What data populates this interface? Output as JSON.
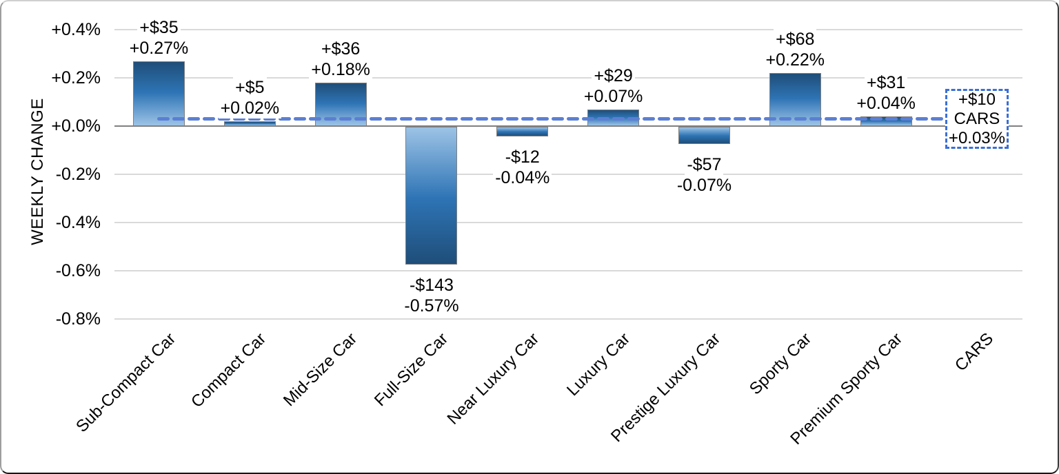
{
  "chart_data": {
    "type": "bar",
    "title": "",
    "ylabel": "WEEKLY CHANGE",
    "xlabel": "",
    "ylim": [
      -0.8,
      0.4
    ],
    "grid": "horizontal",
    "y_ticks": [
      {
        "label": "+0.4%",
        "value": 0.4
      },
      {
        "label": "+0.2%",
        "value": 0.2
      },
      {
        "label": "+0.0%",
        "value": 0.0
      },
      {
        "label": "-0.2%",
        "value": -0.2
      },
      {
        "label": "-0.4%",
        "value": -0.4
      },
      {
        "label": "-0.6%",
        "value": -0.6
      },
      {
        "label": "-0.8%",
        "value": -0.8
      }
    ],
    "bars": [
      {
        "category": "Sub-Compact Car",
        "usd_label": "+$35",
        "pct_label": "+0.27%",
        "value_pct": 0.27,
        "value_usd": 35
      },
      {
        "category": "Compact Car",
        "usd_label": "+$5",
        "pct_label": "+0.02%",
        "value_pct": 0.02,
        "value_usd": 5
      },
      {
        "category": "Mid-Size Car",
        "usd_label": "+$36",
        "pct_label": "+0.18%",
        "value_pct": 0.18,
        "value_usd": 36
      },
      {
        "category": "Full-Size Car",
        "usd_label": "-$143",
        "pct_label": "-0.57%",
        "value_pct": -0.57,
        "value_usd": -143
      },
      {
        "category": "Near Luxury Car",
        "usd_label": "-$12",
        "pct_label": "-0.04%",
        "value_pct": -0.04,
        "value_usd": -12
      },
      {
        "category": "Luxury Car",
        "usd_label": "+$29",
        "pct_label": "+0.07%",
        "value_pct": 0.07,
        "value_usd": 29
      },
      {
        "category": "Prestige Luxury Car",
        "usd_label": "-$57",
        "pct_label": "-0.07%",
        "value_pct": -0.07,
        "value_usd": -57
      },
      {
        "category": "Sporty Car",
        "usd_label": "+$68",
        "pct_label": "+0.22%",
        "value_pct": 0.22,
        "value_usd": 68
      },
      {
        "category": "Premium Sporty Car",
        "usd_label": "+$31",
        "pct_label": "+0.04%",
        "value_pct": 0.04,
        "value_usd": 31
      },
      {
        "category": "CARS",
        "value_pct": null
      }
    ],
    "average_line": {
      "category": "CARS",
      "value_pct": 0.03,
      "value_usd": 10,
      "box_lines": [
        "+$10",
        "CARS",
        "+0.03%"
      ],
      "style": "dashed"
    },
    "legend": "none"
  },
  "colors": {
    "bar_gradient_dark": "#1F4E79",
    "bar_gradient_mid": "#2E74B5",
    "bar_gradient_light": "#9DC3E6",
    "bar_border": "#7F7F7F",
    "gridline": "#D9D9D9",
    "axis_line": "#808080",
    "average_line": "#5B7FD3",
    "average_box_border": "#3A6FD7",
    "text": "#000000"
  }
}
